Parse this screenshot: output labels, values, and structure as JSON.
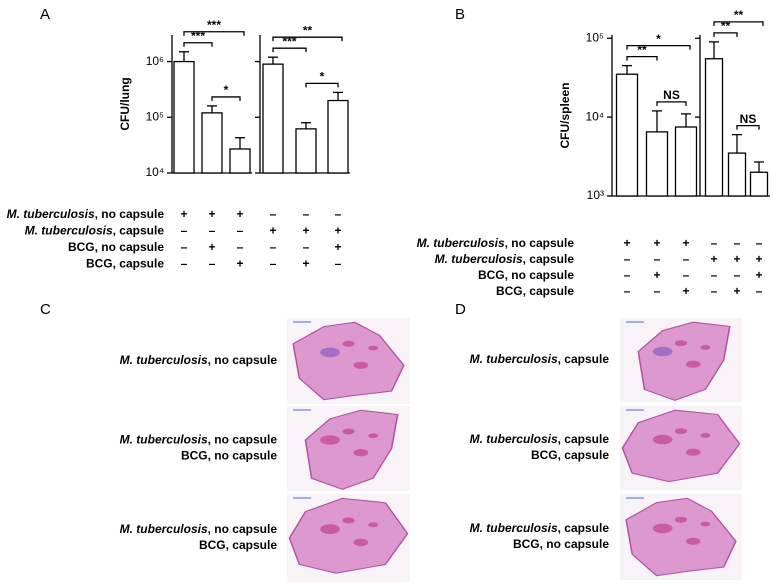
{
  "panel_labels": [
    "A",
    "B",
    "C",
    "D"
  ],
  "chart_data": [
    {
      "type": "bar",
      "ylabel": "CFU/lung",
      "log": true,
      "color": "#ffffff",
      "ylim": [
        10000,
        3000000
      ],
      "yticks": [
        {
          "value": 10000,
          "label": "10⁴"
        },
        {
          "value": 100000,
          "label": "10⁵"
        },
        {
          "value": 1000000,
          "label": "10⁶"
        }
      ],
      "categories": [
        null,
        null,
        null
      ],
      "values": [
        1000000,
        120000,
        27000
      ],
      "errors": [
        500000,
        40000,
        16000
      ],
      "comparisons": [
        {
          "between": [
            0,
            2
          ],
          "label": "***"
        },
        {
          "between": [
            0,
            1
          ],
          "label": "***"
        },
        {
          "between": [
            1,
            2
          ],
          "label": "*"
        }
      ]
    },
    {
      "type": "bar",
      "log": true,
      "color": "#ffffff",
      "ylim": [
        10000,
        3000000
      ],
      "categories": [
        null,
        null,
        null
      ],
      "values": [
        900000,
        62000,
        200000
      ],
      "errors": [
        300000,
        18000,
        80000
      ],
      "comparisons": [
        {
          "between": [
            0,
            2
          ],
          "label": "**"
        },
        {
          "between": [
            0,
            1
          ],
          "label": "***"
        },
        {
          "between": [
            1,
            2
          ],
          "label": "*"
        }
      ]
    },
    {
      "type": "bar",
      "ylabel": "CFU/spleen",
      "log": true,
      "color": "#ffffff",
      "ylim": [
        1000,
        110000
      ],
      "yticks": [
        {
          "value": 1000,
          "label": "10³"
        },
        {
          "value": 10000,
          "label": "10⁴"
        },
        {
          "value": 100000,
          "label": "10⁵"
        }
      ],
      "categories": [
        null,
        null,
        null
      ],
      "values": [
        35000,
        6500,
        7500
      ],
      "errors": [
        10000,
        5500,
        3500
      ],
      "comparisons": [
        {
          "between": [
            0,
            2
          ],
          "label": "*"
        },
        {
          "between": [
            0,
            1
          ],
          "label": "**"
        },
        {
          "between": [
            1,
            2
          ],
          "label": "NS"
        }
      ]
    },
    {
      "type": "bar",
      "log": true,
      "color": "#ffffff",
      "ylim": [
        1000,
        110000
      ],
      "categories": [
        null,
        null,
        null
      ],
      "values": [
        55000,
        3500,
        2000
      ],
      "errors": [
        35000,
        2500,
        700
      ],
      "comparisons": [
        {
          "between": [
            0,
            2
          ],
          "label": "**"
        },
        {
          "between": [
            0,
            1
          ],
          "label": "**"
        },
        {
          "between": [
            1,
            2
          ],
          "label": "NS"
        }
      ]
    }
  ],
  "conditions": [
    {
      "rows": [
        {
          "label": {
            "italic": "M. tuberculosis",
            "text": ", no capsule"
          },
          "signs": [
            "+",
            "+",
            "+",
            "–",
            "–",
            "–"
          ]
        },
        {
          "label": {
            "italic": "M. tuberculosis",
            "text": ", capsule"
          },
          "signs": [
            "–",
            "–",
            "–",
            "+",
            "+",
            "+"
          ]
        },
        {
          "label": {
            "text": "BCG, no capsule"
          },
          "signs": [
            "–",
            "+",
            "–",
            "–",
            "–",
            "+"
          ]
        },
        {
          "label": {
            "text": "BCG, capsule"
          },
          "signs": [
            "–",
            "–",
            "+",
            "–",
            "+",
            "–"
          ]
        }
      ]
    },
    {
      "rows": [
        {
          "label": {
            "italic": "M. tuberculosis",
            "text": ", no capsule"
          },
          "signs": [
            "+",
            "+",
            "+",
            "–",
            "–",
            "–"
          ]
        },
        {
          "label": {
            "italic": "M. tuberculosis",
            "text": ", capsule"
          },
          "signs": [
            "–",
            "–",
            "–",
            "+",
            "+",
            "+"
          ]
        },
        {
          "label": {
            "text": "BCG, no capsule"
          },
          "signs": [
            "–",
            "+",
            "–",
            "–",
            "–",
            "+"
          ]
        },
        {
          "label": {
            "text": "BCG, capsule"
          },
          "signs": [
            "–",
            "–",
            "+",
            "–",
            "+",
            "–"
          ]
        }
      ]
    }
  ],
  "histology": [
    {
      "rows": [
        [
          {
            "italic": "M. tuberculosis",
            "text": ", no capsule"
          }
        ],
        [
          {
            "italic": "M. tuberculosis",
            "text": ", no capsule"
          },
          {
            "text": "BCG, no capsule"
          }
        ],
        [
          {
            "italic": "M. tuberculosis",
            "text": ", no capsule"
          },
          {
            "text": "BCG, capsule"
          }
        ]
      ]
    },
    {
      "rows": [
        [
          {
            "italic": "M. tuberculosis",
            "text": ", capsule"
          }
        ],
        [
          {
            "italic": "M. tuberculosis",
            "text": ", capsule"
          },
          {
            "text": "BCG, capsule"
          }
        ],
        [
          {
            "italic": "M. tuberculosis",
            "text": ", capsule"
          },
          {
            "text": "BCG, no capsule"
          }
        ]
      ]
    }
  ]
}
